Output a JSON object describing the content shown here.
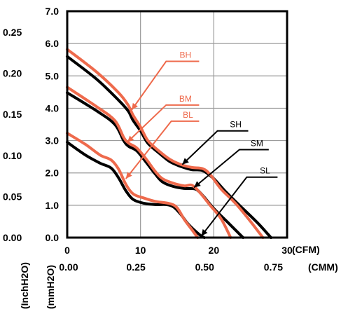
{
  "chart_data": {
    "type": "line",
    "title": "",
    "xlabel": "",
    "ylabel": "",
    "x_unit_primary": "(CFM)",
    "x_unit_secondary": "(CMM)",
    "y_unit_primary": "(mmH2O)",
    "y_unit_secondary": "(InchH2O)",
    "xlim": [
      0,
      30
    ],
    "ylim": [
      0,
      7
    ],
    "grid": true,
    "x_ticks_primary": [
      "0",
      "10",
      "20",
      "30"
    ],
    "x_ticks_secondary": [
      "0.00",
      "0.25",
      "0.50",
      "0.75"
    ],
    "y_ticks_primary": [
      "0.0",
      "1.0",
      "2.0",
      "3.0",
      "4.0",
      "5.0",
      "6.0",
      "7.0"
    ],
    "y_ticks_secondary": [
      "0.00",
      "0.05",
      "0.10",
      "0.15",
      "0.20",
      "0.25"
    ],
    "series": [
      {
        "name": "BH",
        "color": "#ee6a4c",
        "points": [
          [
            0,
            5.82
          ],
          [
            4,
            5.12
          ],
          [
            7,
            4.48
          ],
          [
            8.3,
            4.1
          ],
          [
            9,
            3.78
          ],
          [
            10,
            3.42
          ],
          [
            11,
            3.0
          ],
          [
            12.5,
            2.68
          ],
          [
            14,
            2.42
          ],
          [
            15.5,
            2.26
          ],
          [
            17,
            2.17
          ],
          [
            18.5,
            2.13
          ],
          [
            19.5,
            1.95
          ],
          [
            21,
            1.5
          ],
          [
            23,
            1.05
          ],
          [
            25,
            0.5
          ],
          [
            26.7,
            0
          ]
        ]
      },
      {
        "name": "BM",
        "color": "#ee6a4c",
        "points": [
          [
            0,
            4.65
          ],
          [
            4,
            4.05
          ],
          [
            6.5,
            3.62
          ],
          [
            7.7,
            3.1
          ],
          [
            8.4,
            2.92
          ],
          [
            9.5,
            2.77
          ],
          [
            10.8,
            2.42
          ],
          [
            12,
            2.05
          ],
          [
            13,
            1.82
          ],
          [
            14.5,
            1.68
          ],
          [
            16,
            1.6
          ],
          [
            17,
            1.62
          ],
          [
            18,
            1.42
          ],
          [
            19.5,
            1.0
          ],
          [
            21,
            0.58
          ],
          [
            22.3,
            0
          ]
        ]
      },
      {
        "name": "BL",
        "color": "#ee6a4c",
        "points": [
          [
            0,
            3.23
          ],
          [
            2.5,
            2.88
          ],
          [
            4.5,
            2.55
          ],
          [
            6,
            2.4
          ],
          [
            7,
            2.12
          ],
          [
            8,
            1.65
          ],
          [
            9,
            1.35
          ],
          [
            10.5,
            1.22
          ],
          [
            12,
            1.12
          ],
          [
            14,
            1.05
          ],
          [
            15,
            0.92
          ],
          [
            16,
            0.55
          ],
          [
            17,
            0.25
          ],
          [
            17.8,
            0
          ]
        ]
      },
      {
        "name": "SH",
        "color": "#000000",
        "points": [
          [
            0,
            5.6
          ],
          [
            4,
            4.9
          ],
          [
            7,
            4.25
          ],
          [
            8.3,
            3.92
          ],
          [
            9,
            3.62
          ],
          [
            10,
            3.3
          ],
          [
            11,
            2.92
          ],
          [
            12.5,
            2.62
          ],
          [
            14,
            2.35
          ],
          [
            15.5,
            2.2
          ],
          [
            17,
            2.1
          ],
          [
            18.5,
            2.07
          ],
          [
            20,
            1.82
          ],
          [
            21.5,
            1.45
          ],
          [
            23.5,
            1.0
          ],
          [
            26,
            0.45
          ],
          [
            27.8,
            0
          ]
        ]
      },
      {
        "name": "SM",
        "color": "#000000",
        "points": [
          [
            0,
            4.48
          ],
          [
            4,
            3.92
          ],
          [
            6.5,
            3.5
          ],
          [
            7.7,
            3.0
          ],
          [
            8.4,
            2.82
          ],
          [
            9.5,
            2.68
          ],
          [
            10.8,
            2.32
          ],
          [
            12,
            1.97
          ],
          [
            13,
            1.72
          ],
          [
            14.5,
            1.58
          ],
          [
            16,
            1.52
          ],
          [
            17.5,
            1.5
          ],
          [
            18.5,
            1.3
          ],
          [
            20,
            0.9
          ],
          [
            22,
            0.45
          ],
          [
            24,
            0
          ]
        ]
      },
      {
        "name": "SL",
        "color": "#000000",
        "points": [
          [
            0,
            2.95
          ],
          [
            2.5,
            2.55
          ],
          [
            4.5,
            2.3
          ],
          [
            6,
            2.15
          ],
          [
            7,
            1.85
          ],
          [
            8,
            1.45
          ],
          [
            9,
            1.18
          ],
          [
            10.5,
            1.06
          ],
          [
            12,
            1.02
          ],
          [
            13.5,
            1.02
          ],
          [
            14.5,
            0.95
          ],
          [
            15.5,
            0.72
          ],
          [
            16.5,
            0.42
          ],
          [
            18,
            0.1
          ],
          [
            18.7,
            0
          ]
        ]
      }
    ],
    "annotations": [
      {
        "label": "BH",
        "color": "#ee6a4c",
        "from": [
          18,
          5.45
        ],
        "elbow": [
          13.5,
          5.45
        ],
        "to": [
          8.8,
          3.95
        ]
      },
      {
        "label": "BM",
        "color": "#ee6a4c",
        "from": [
          18,
          4.1
        ],
        "elbow": [
          13.5,
          4.1
        ],
        "to": [
          8.2,
          2.95
        ]
      },
      {
        "label": "BL",
        "color": "#ee6a4c",
        "from": [
          18,
          3.6
        ],
        "elbow": [
          14.2,
          3.6
        ],
        "to": [
          8.0,
          1.82
        ]
      },
      {
        "label": "SH",
        "color": "#000000",
        "from": [
          24.7,
          3.3
        ],
        "elbow": [
          20.5,
          3.3
        ],
        "to": [
          15.7,
          2.26
        ]
      },
      {
        "label": "SM",
        "color": "#000000",
        "from": [
          27.5,
          2.72
        ],
        "elbow": [
          23.5,
          2.72
        ],
        "to": [
          17.3,
          1.55
        ]
      },
      {
        "label": "SL",
        "color": "#000000",
        "from": [
          28.7,
          1.87
        ],
        "elbow": [
          24.5,
          1.87
        ],
        "to": [
          18.3,
          0.05
        ]
      }
    ]
  }
}
